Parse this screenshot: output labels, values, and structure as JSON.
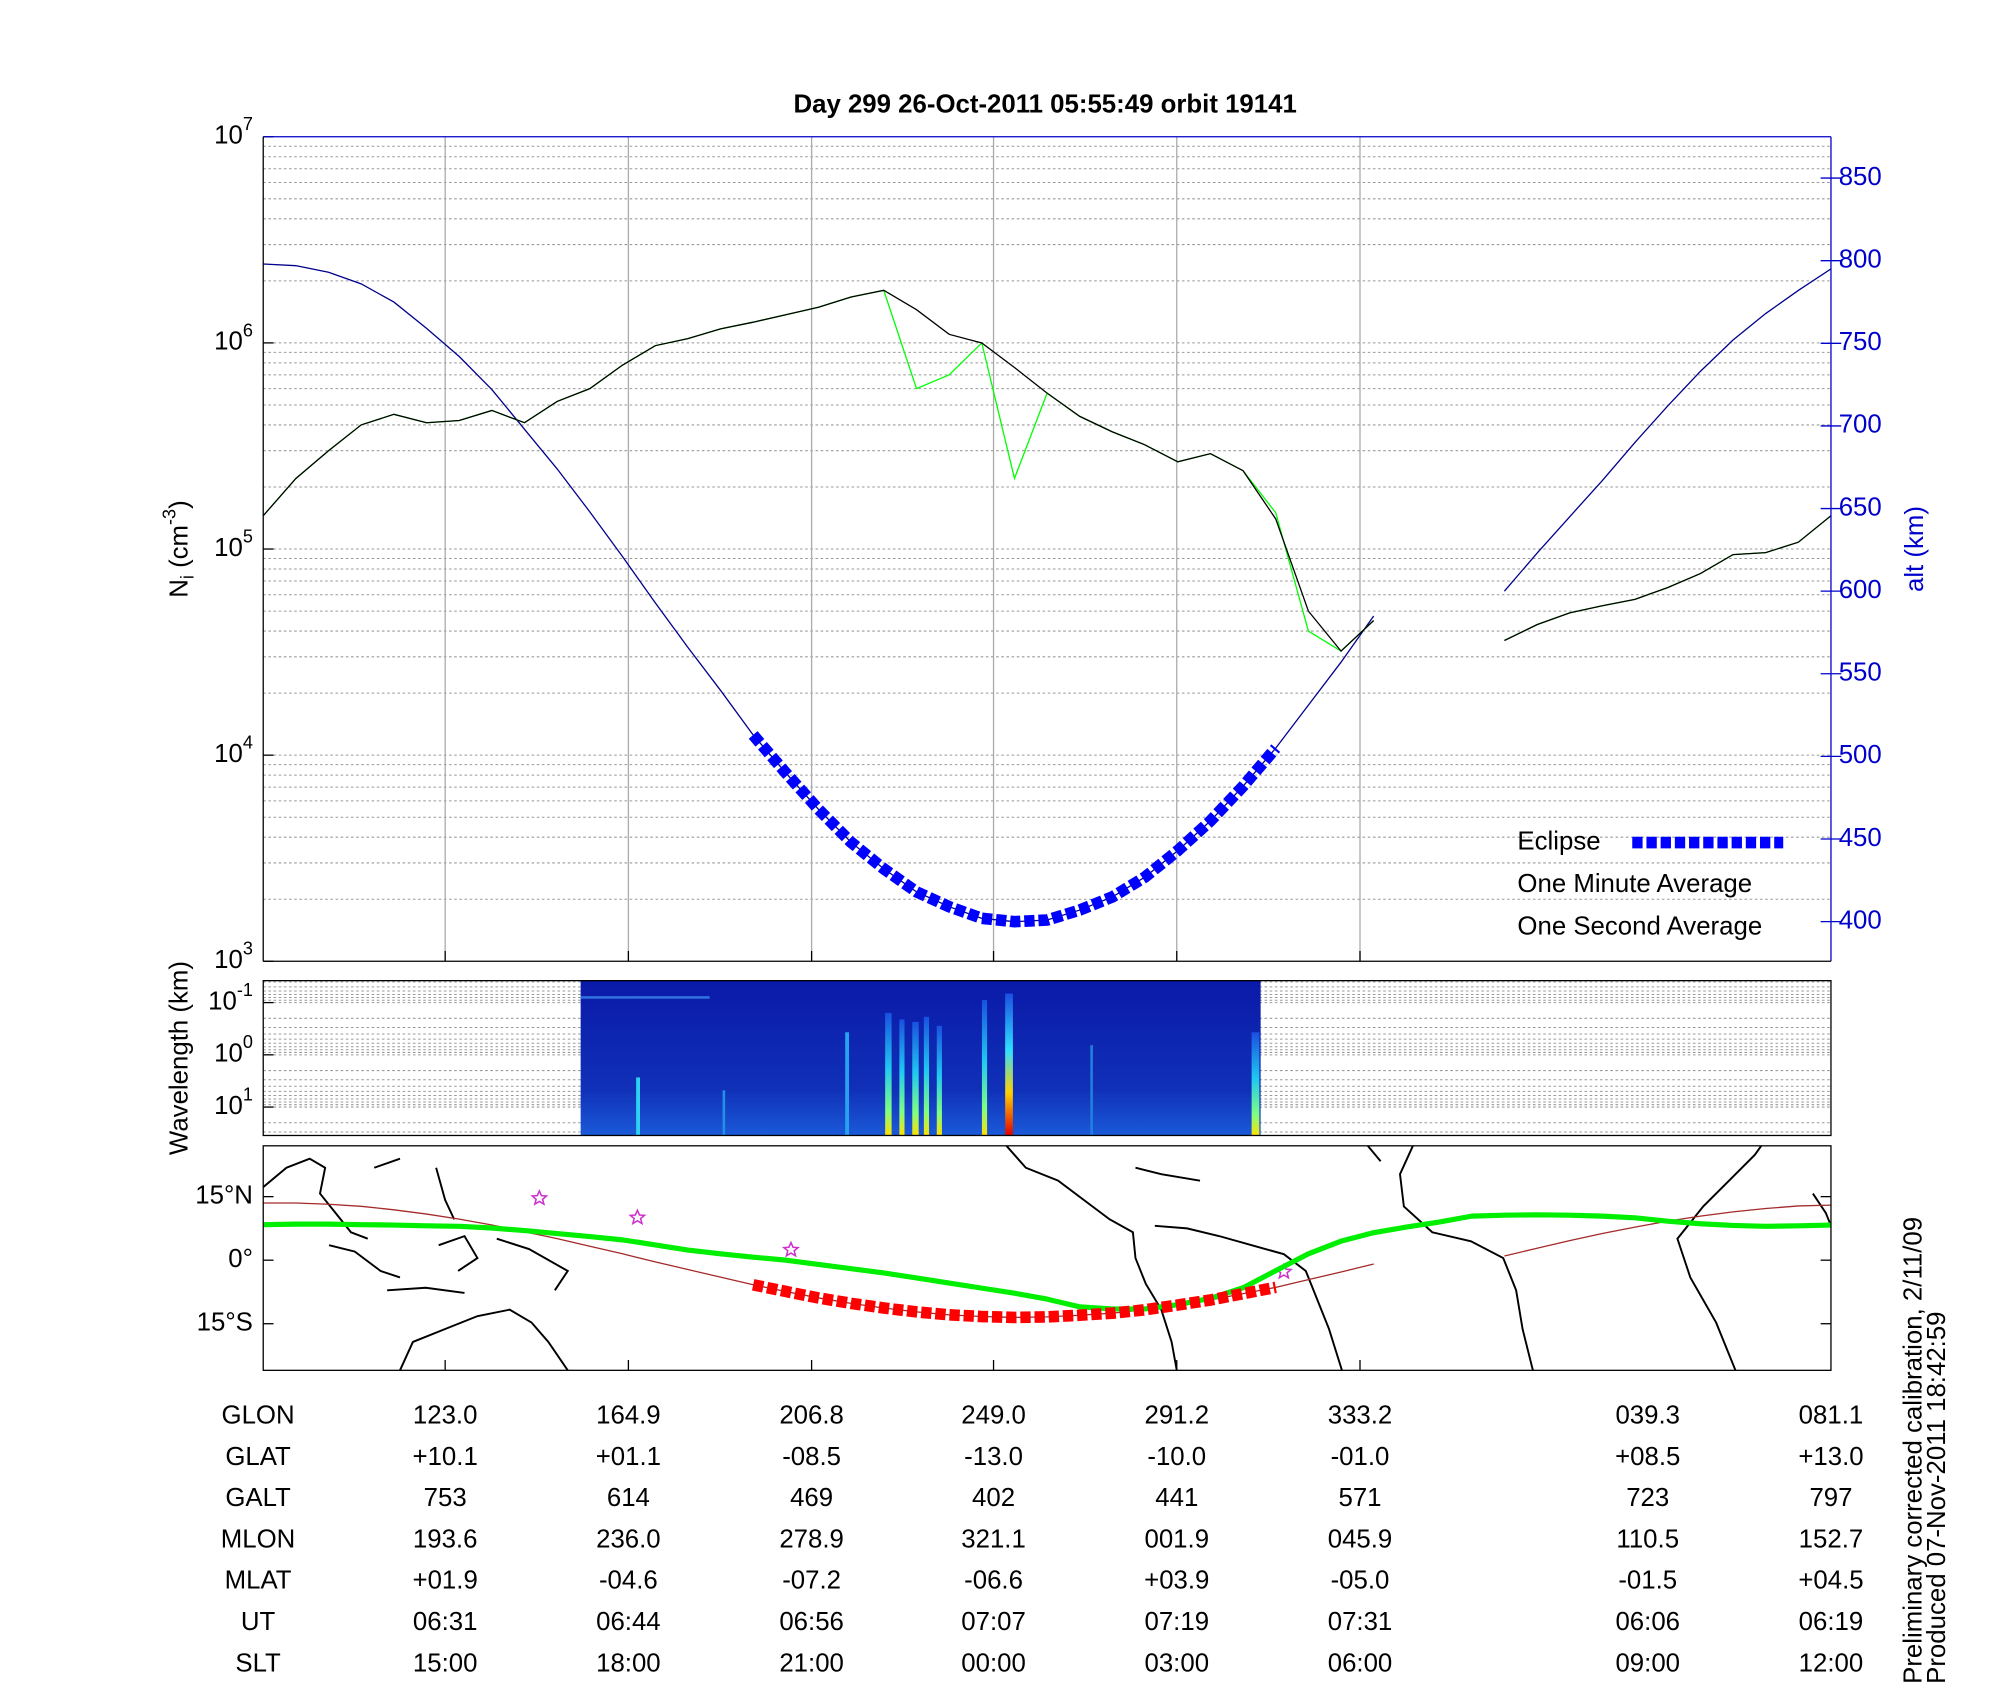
{
  "chart_data": [
    {
      "type": "line",
      "title": "Day 299  26-Oct-2011 05:55:49   orbit 19141",
      "ylabel": {
        "base": "N",
        "sub": "i",
        "unit": " (cm",
        "sup": "-3",
        "end": ")"
      },
      "y2label": "alt (km)",
      "ylog": true,
      "ylim": [
        1000,
        10000000
      ],
      "yticks": [
        {
          "value": 1000,
          "label": "10",
          "exponent": "3"
        },
        {
          "value": 10000,
          "label": "10",
          "exponent": "4"
        },
        {
          "value": 100000,
          "label": "10",
          "exponent": "5"
        },
        {
          "value": 1000000,
          "label": "10",
          "exponent": "6"
        },
        {
          "value": 10000000,
          "label": "10",
          "exponent": "7"
        }
      ],
      "y2lim": [
        376,
        875
      ],
      "y2ticks": [
        400,
        450,
        500,
        550,
        600,
        650,
        700,
        750,
        800,
        850
      ],
      "grid": true,
      "legend": "lower right",
      "series": [
        {
          "name": "Eclipse",
          "color": "#0000ff",
          "axis": "y2",
          "style": "squares",
          "values": [
            null,
            null,
            null,
            null,
            null,
            null,
            null,
            null,
            null,
            null,
            null,
            null,
            null,
            null,
            null,
            513,
            490,
            468,
            448,
            432,
            418,
            409,
            402,
            400,
            401,
            407,
            415,
            427,
            443,
            461,
            482,
            505,
            null,
            null,
            null,
            null,
            null,
            null,
            null,
            null,
            null,
            null,
            null,
            null,
            null,
            null,
            null,
            null,
            null
          ]
        },
        {
          "name": "One Minute Average",
          "color": "#000000",
          "style": "line",
          "values": [
            145000,
            220000,
            300000,
            400000,
            450000,
            410000,
            420000,
            470000,
            410000,
            520000,
            600000,
            780000,
            970000,
            1050000,
            1170000,
            1260000,
            1370000,
            1490000,
            1670000,
            1800000,
            1450000,
            1100000,
            1000000,
            760000,
            570000,
            440000,
            370000,
            320000,
            265000,
            290000,
            240000,
            140000,
            50000,
            32000,
            45000,
            null,
            null,
            null,
            36000,
            43000,
            49000,
            53000,
            57000,
            65000,
            76000,
            94000,
            96000,
            108000,
            145000
          ]
        },
        {
          "name": "One Second Average",
          "color": "#00ff00",
          "style": "line",
          "values": [
            145000,
            220000,
            300000,
            400000,
            450000,
            410000,
            420000,
            470000,
            410000,
            520000,
            600000,
            780000,
            970000,
            1050000,
            1170000,
            1260000,
            1370000,
            1490000,
            1670000,
            1800000,
            600000,
            700000,
            1000000,
            220000,
            570000,
            440000,
            370000,
            320000,
            265000,
            290000,
            240000,
            150000,
            40000,
            32000,
            45000,
            null,
            null,
            null,
            36000,
            43000,
            49000,
            53000,
            57000,
            65000,
            76000,
            94000,
            96000,
            108000,
            145000
          ]
        },
        {
          "color": "#00008b",
          "axis": "y2",
          "style": "line",
          "values": [
            798,
            797,
            793,
            786,
            775,
            759,
            742,
            722,
            698,
            674,
            648,
            621,
            593,
            566,
            540,
            513,
            490,
            468,
            448,
            432,
            418,
            409,
            402,
            400,
            401,
            407,
            415,
            427,
            443,
            461,
            482,
            505,
            531,
            557,
            585,
            null,
            null,
            null,
            600,
            623,
            645,
            667,
            690,
            712,
            733,
            752,
            768,
            782,
            795
          ]
        }
      ]
    },
    {
      "type": "spectrogram",
      "ylabel": "Wavelength (km)",
      "ylog": true,
      "yinvert": true,
      "ylim": [
        0.038,
        35
      ],
      "yticks": [
        {
          "value": 0.1,
          "label": "10",
          "exponent": "-1"
        },
        {
          "value": 1,
          "label": "10",
          "exponent": "0"
        },
        {
          "value": 10,
          "label": "10",
          "exponent": "1"
        }
      ]
    },
    {
      "type": "map",
      "ylim": [
        -26,
        27
      ],
      "yticks": [
        {
          "value": 15,
          "label": "15°N"
        },
        {
          "value": 0,
          "label": "0°"
        },
        {
          "value": -15,
          "label": "15°S"
        }
      ],
      "series": [
        {
          "color": "#a52a2a",
          "style": "line",
          "values": [
            13.5,
            13.5,
            13.2,
            12.7,
            11.9,
            10.9,
            9.7,
            8.3,
            6.7,
            5.1,
            3.3,
            1.5,
            -0.4,
            -2.2,
            -4.0,
            -5.8,
            -7.4,
            -8.9,
            -10.2,
            -11.3,
            -12.2,
            -12.9,
            -13.3,
            -13.5,
            -13.4,
            -13.0,
            -12.5,
            -11.7,
            -10.6,
            -9.4,
            -7.9,
            -6.4,
            -4.6,
            -2.8,
            -0.9,
            null,
            null,
            null,
            1.0,
            2.8,
            4.6,
            6.3,
            7.8,
            9.2,
            10.4,
            11.4,
            12.2,
            12.8,
            13.0
          ]
        },
        {
          "color": "#00ee00",
          "style": "thick",
          "values": [
            8.4,
            8.5,
            8.5,
            8.4,
            8.3,
            8.1,
            8.0,
            7.6,
            7.0,
            6.3,
            5.6,
            4.8,
            3.6,
            2.4,
            1.5,
            0.7,
            0.0,
            -1.0,
            -2.0,
            -3.0,
            -4.2,
            -5.4,
            -6.6,
            -7.8,
            -9.2,
            -11.0,
            -11.5,
            -11.5,
            -10.5,
            -9.0,
            -6.5,
            -2.5,
            1.5,
            4.5,
            6.5,
            7.8,
            9.0,
            10.4,
            10.6,
            10.7,
            10.6,
            10.4,
            10.0,
            9.2,
            8.6,
            8.2,
            8.0,
            8.1,
            8.3
          ]
        },
        {
          "color": "#ff0000",
          "style": "squares",
          "values": [
            null,
            null,
            null,
            null,
            null,
            null,
            null,
            null,
            null,
            null,
            null,
            null,
            null,
            null,
            null,
            -5.8,
            -7.4,
            -8.9,
            -10.2,
            -11.3,
            -12.2,
            -12.9,
            -13.3,
            -13.5,
            -13.4,
            -13.0,
            -12.5,
            -11.7,
            -10.6,
            -9.4,
            -7.9,
            -6.4,
            null,
            null,
            null,
            null,
            null,
            null,
            null,
            null,
            null,
            null,
            null,
            null,
            null,
            null,
            null,
            null,
            null
          ]
        }
      ]
    }
  ],
  "table": {
    "rows": [
      {
        "label": "GLON",
        "cells": [
          "123.0",
          "164.9",
          "206.8",
          "249.0",
          "291.2",
          "333.2",
          "039.3",
          "081.1"
        ]
      },
      {
        "label": "GLAT",
        "cells": [
          "+10.1",
          "+01.1",
          "-08.5",
          "-13.0",
          "-10.0",
          "-01.0",
          "+08.5",
          "+13.0"
        ]
      },
      {
        "label": "GALT",
        "cells": [
          "753",
          "614",
          "469",
          "402",
          "441",
          "571",
          "723",
          "797"
        ]
      },
      {
        "label": "MLON",
        "cells": [
          "193.6",
          "236.0",
          "278.9",
          "321.1",
          "001.9",
          "045.9",
          "110.5",
          "152.7"
        ]
      },
      {
        "label": "MLAT",
        "cells": [
          "+01.9",
          "-04.6",
          "-07.2",
          "-06.6",
          "+03.9",
          "-05.0",
          "-01.5",
          "+04.5"
        ]
      },
      {
        "label": "UT",
        "cells": [
          "06:31",
          "06:44",
          "06:56",
          "07:07",
          "07:19",
          "07:31",
          "06:06",
          "06:19"
        ]
      },
      {
        "label": "SLT",
        "cells": [
          "15:00",
          "18:00",
          "21:00",
          "00:00",
          "03:00",
          "06:00",
          "09:00",
          "12:00"
        ]
      }
    ]
  },
  "footnotes": [
    "Preliminary corrected calibration, 2/11/09",
    "Produced 07-Nov-2011 18:42:59"
  ]
}
